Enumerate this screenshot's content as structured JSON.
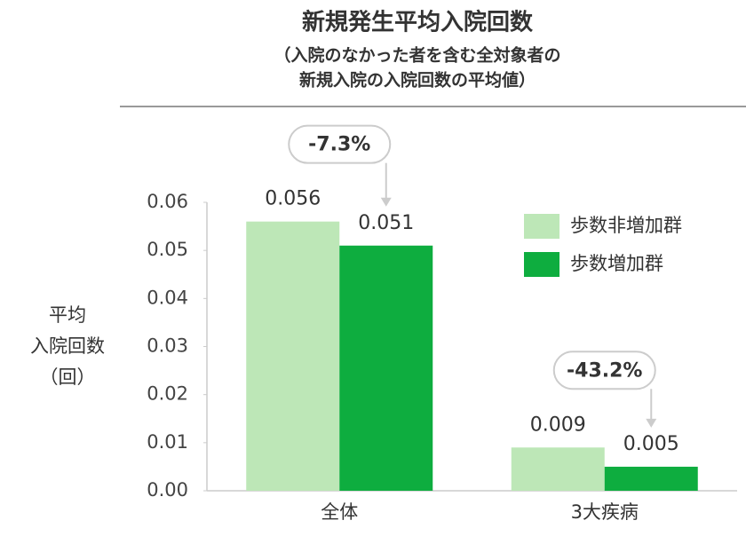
{
  "chart_data": {
    "type": "bar",
    "title": "新規発生平均入院回数",
    "subtitle": [
      "（入院のなかった者を含む全対象者の",
      "新規入院の入院回数の平均値）"
    ],
    "y_label": [
      "平均",
      "入院回数",
      "（回）"
    ],
    "categories": [
      "全体",
      "3大疾病"
    ],
    "series": [
      {
        "name": "歩数非増加群",
        "color": "#bde7b7",
        "values": [
          0.056,
          0.009
        ]
      },
      {
        "name": "歩数増加群",
        "color": "#0ead3f",
        "values": [
          0.051,
          0.005
        ]
      }
    ],
    "annotations": [
      "-7.3%",
      "-43.2%"
    ],
    "ylim": [
      0,
      0.06
    ],
    "yticks": [
      {
        "value": 0,
        "label": "0.00"
      },
      0.01,
      0.02,
      0.03,
      0.04,
      0.05,
      0.06
    ],
    "legend": "top-right"
  }
}
